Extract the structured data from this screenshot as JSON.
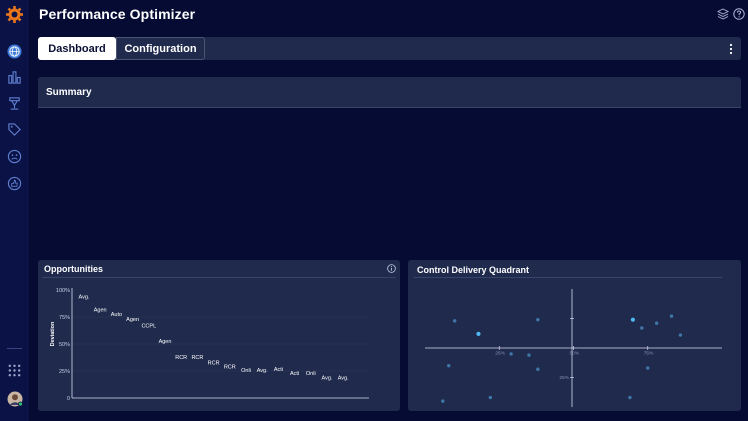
{
  "app": {
    "title": "Performance Optimizer"
  },
  "sidebar": {
    "icons": [
      "globe-icon",
      "bar-chart-icon",
      "trophy-icon",
      "tag-icon",
      "face-icon",
      "thumbs-up-icon",
      "apps-grid-icon",
      "user-avatar"
    ]
  },
  "tabs": [
    {
      "label": "Dashboard",
      "active": true
    },
    {
      "label": "Configuration",
      "active": false
    }
  ],
  "summary": {
    "title": "Summary"
  },
  "opportunities": {
    "title": "Opportunities",
    "chart_data": {
      "type": "scatter",
      "ylabel": "Deviation",
      "yticks": [
        "100%",
        "75%",
        "50%",
        "25%",
        "0"
      ],
      "ylim": [
        0,
        100
      ],
      "points": [
        {
          "label": "Avg.",
          "x": 1,
          "y": 94
        },
        {
          "label": "Agen",
          "x": 2,
          "y": 82
        },
        {
          "label": "Auto",
          "x": 3,
          "y": 78
        },
        {
          "label": "Agen",
          "x": 4,
          "y": 73
        },
        {
          "label": "CCPL",
          "x": 5,
          "y": 67
        },
        {
          "label": "Agen",
          "x": 6,
          "y": 53
        },
        {
          "label": "RCR",
          "x": 7,
          "y": 38
        },
        {
          "label": "RCR",
          "x": 8,
          "y": 38
        },
        {
          "label": "RCR",
          "x": 9,
          "y": 33
        },
        {
          "label": "RCR",
          "x": 10,
          "y": 29
        },
        {
          "label": "Onli",
          "x": 11,
          "y": 26
        },
        {
          "label": "Avg.",
          "x": 12,
          "y": 26
        },
        {
          "label": "Acti",
          "x": 13,
          "y": 27
        },
        {
          "label": "Acti",
          "x": 14,
          "y": 23
        },
        {
          "label": "Onli",
          "x": 15,
          "y": 23
        },
        {
          "label": "Avg.",
          "x": 16,
          "y": 19
        },
        {
          "label": "Avg.",
          "x": 17,
          "y": 19
        }
      ]
    }
  },
  "quadrant": {
    "title": "Control Delivery Quadrant",
    "chart_data": {
      "type": "scatter",
      "xticks": [
        "25%",
        "50%",
        "75%"
      ],
      "yticks": [
        "50%",
        "25%"
      ],
      "points": [
        {
          "x": 10,
          "y": 73,
          "highlight": false
        },
        {
          "x": 18,
          "y": 62,
          "highlight": true
        },
        {
          "x": 38,
          "y": 74,
          "highlight": false
        },
        {
          "x": 70,
          "y": 74,
          "highlight": true
        },
        {
          "x": 73,
          "y": 67,
          "highlight": false
        },
        {
          "x": 78,
          "y": 71,
          "highlight": false
        },
        {
          "x": 83,
          "y": 77,
          "highlight": false
        },
        {
          "x": 86,
          "y": 61,
          "highlight": false
        },
        {
          "x": 29,
          "y": 45,
          "highlight": false
        },
        {
          "x": 35,
          "y": 44,
          "highlight": false
        },
        {
          "x": 8,
          "y": 35,
          "highlight": false
        },
        {
          "x": 38,
          "y": 32,
          "highlight": false
        },
        {
          "x": 75,
          "y": 33,
          "highlight": false
        },
        {
          "x": 6,
          "y": 5,
          "highlight": false
        },
        {
          "x": 22,
          "y": 8,
          "highlight": false
        },
        {
          "x": 69,
          "y": 8,
          "highlight": false
        }
      ]
    }
  }
}
